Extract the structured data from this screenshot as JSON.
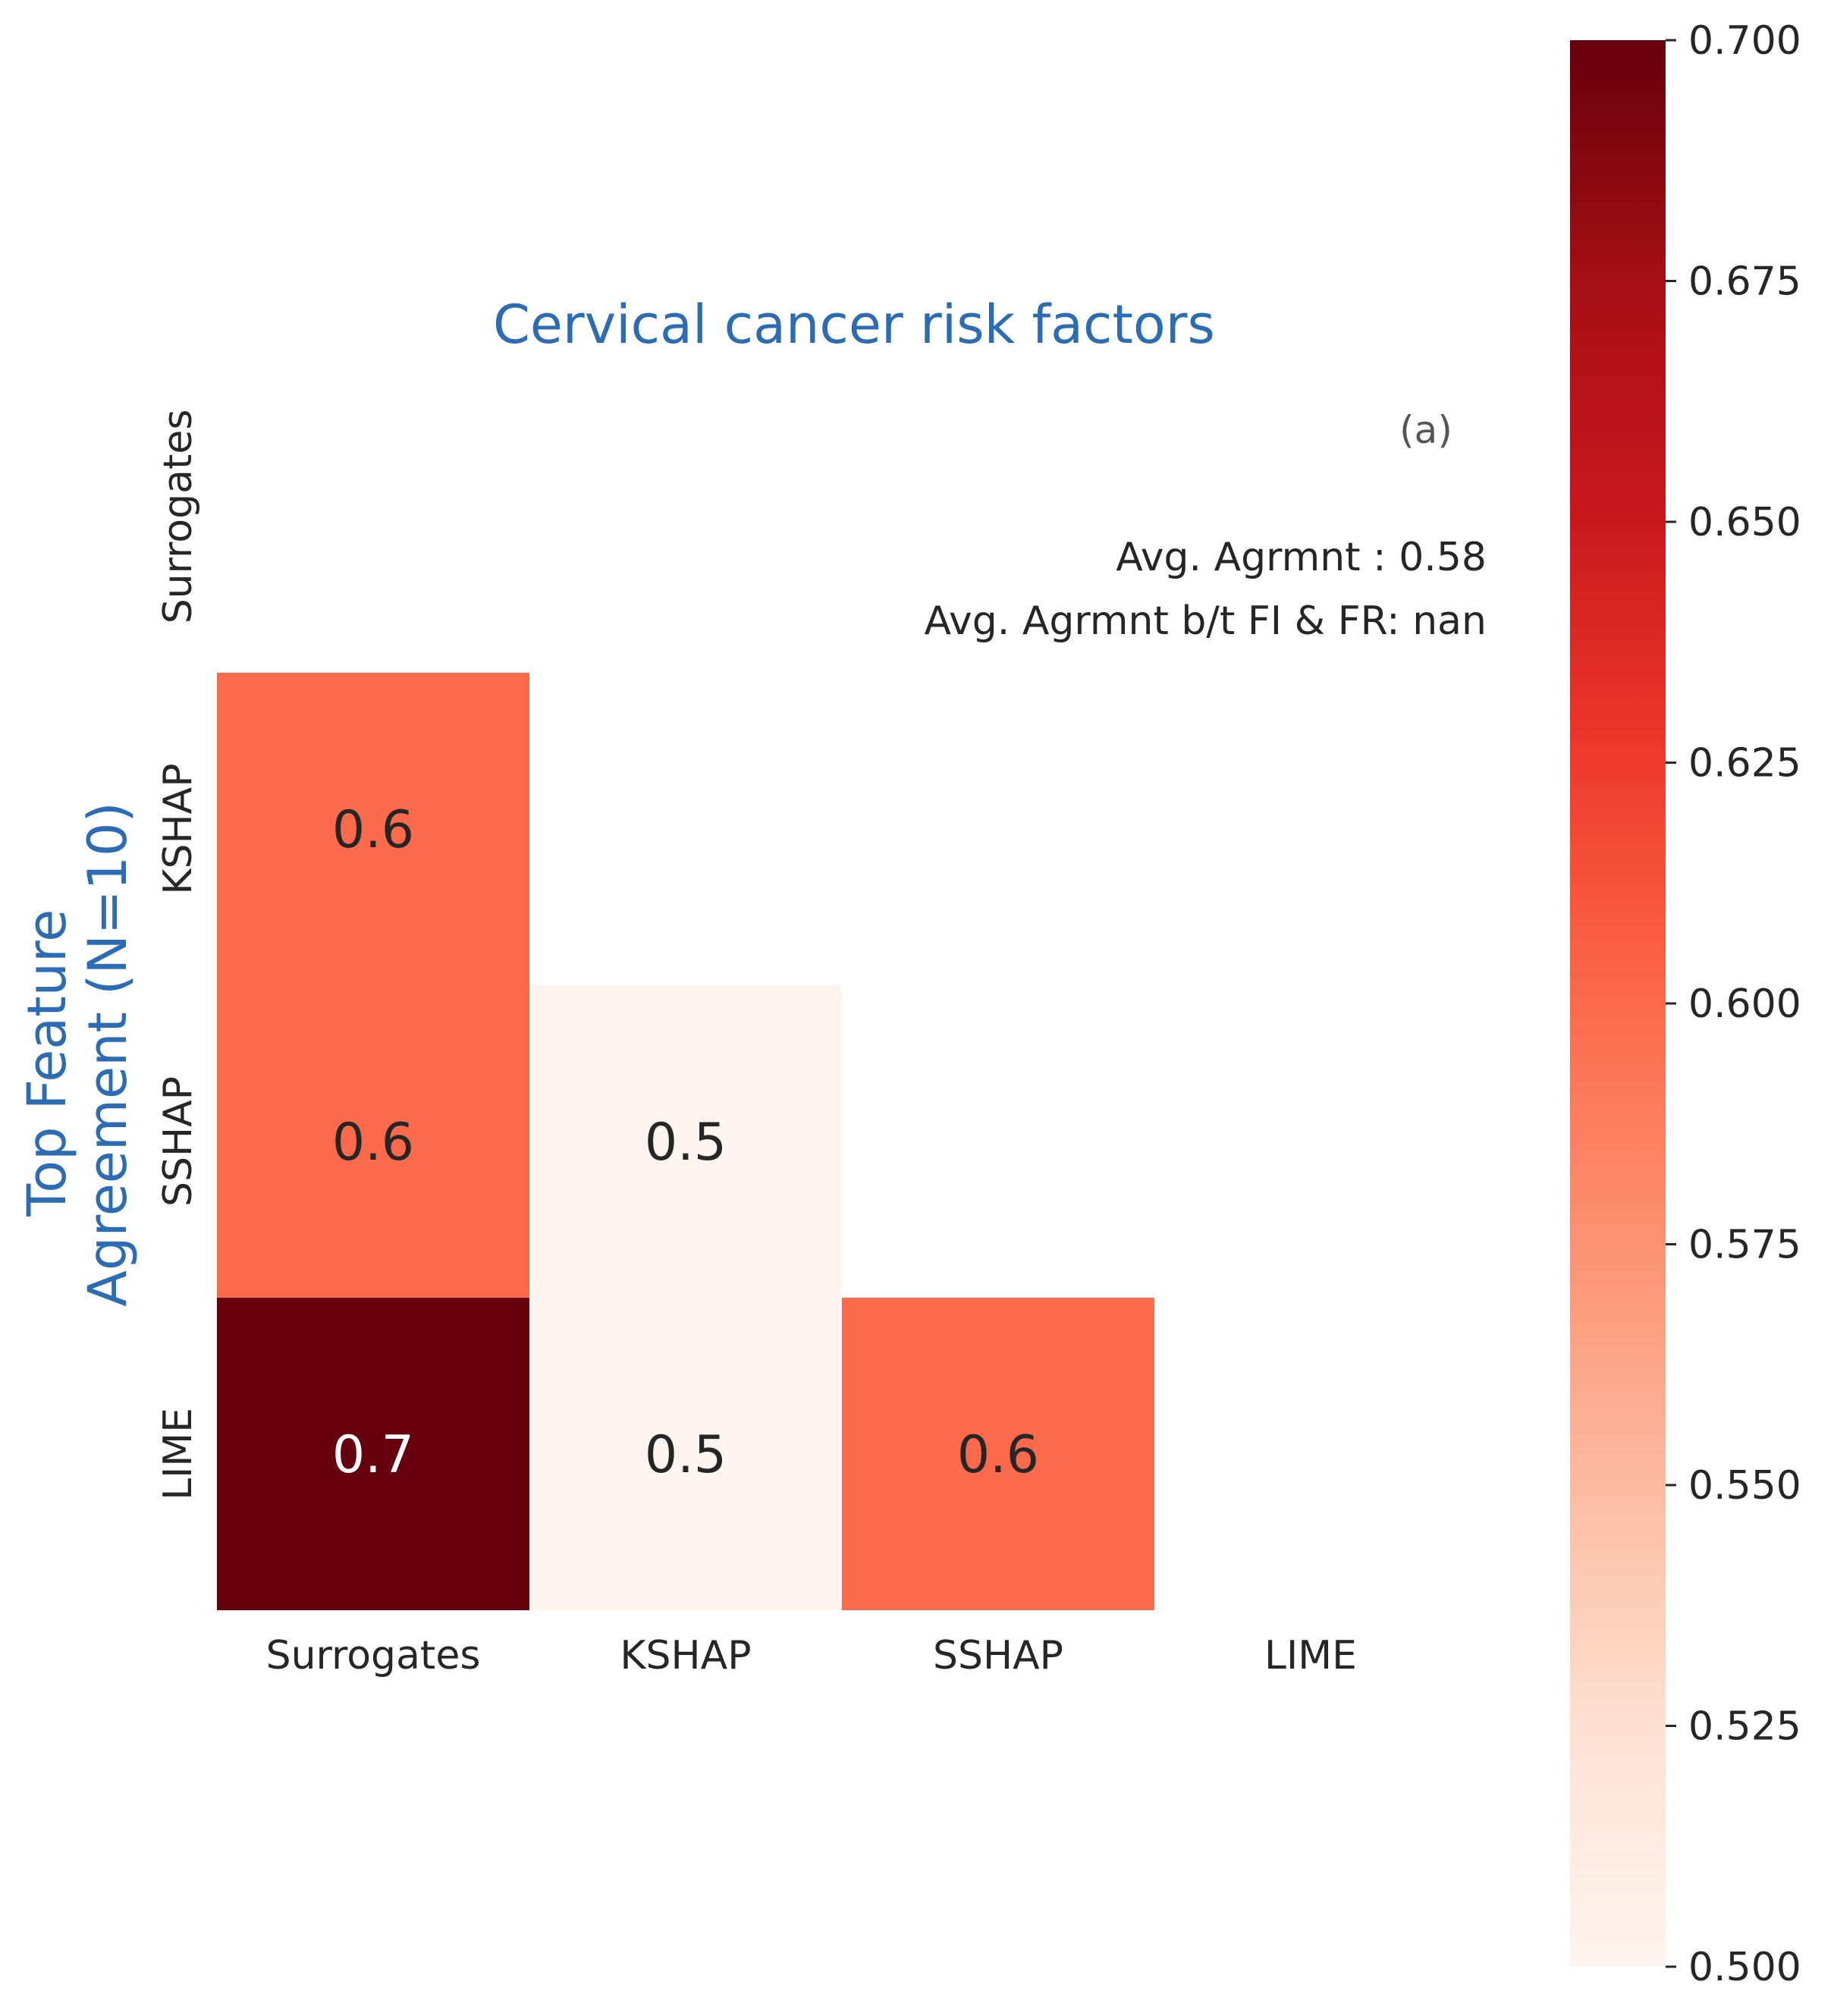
{
  "chart_data": {
    "type": "heatmap",
    "title": "Cervical cancer risk factors",
    "ylabel_lines": [
      "Top Feature",
      "Agreement (N=10)"
    ],
    "panel_label": "(a)",
    "annotations": [
      "Avg. Agrmnt : 0.58",
      "Avg. Agrmnt b/t FI & FR: nan"
    ],
    "x_categories": [
      "Surrogates",
      "KSHAP",
      "SSHAP",
      "LIME"
    ],
    "y_categories": [
      "Surrogates",
      "KSHAP",
      "SSHAP",
      "LIME"
    ],
    "matrix": [
      [
        null,
        null,
        null,
        null
      ],
      [
        0.6,
        null,
        null,
        null
      ],
      [
        0.6,
        0.5,
        null,
        null
      ],
      [
        0.7,
        0.5,
        0.6,
        null
      ]
    ],
    "cell_labels": [
      [
        "",
        "",
        "",
        ""
      ],
      [
        "0.6",
        "",
        "",
        ""
      ],
      [
        "0.6",
        "0.5",
        "",
        ""
      ],
      [
        "0.7",
        "0.5",
        "0.6",
        ""
      ]
    ],
    "mask": "upper triangle including diagonal",
    "colormap": "Reds",
    "colorbar": {
      "vmin": 0.5,
      "vmax": 0.7,
      "ticks": [
        0.5,
        0.525,
        0.55,
        0.575,
        0.6,
        0.625,
        0.65,
        0.675,
        0.7
      ],
      "tick_labels": [
        "0.500",
        "0.525",
        "0.550",
        "0.575",
        "0.600",
        "0.625",
        "0.650",
        "0.675",
        "0.700"
      ]
    },
    "colors": {
      "title": "#2b6cb5",
      "text": "#262626",
      "panel_label": "#555555",
      "cell_text_dark_bg": "#ffffff",
      "cell_text_light_bg": "#262626"
    }
  }
}
